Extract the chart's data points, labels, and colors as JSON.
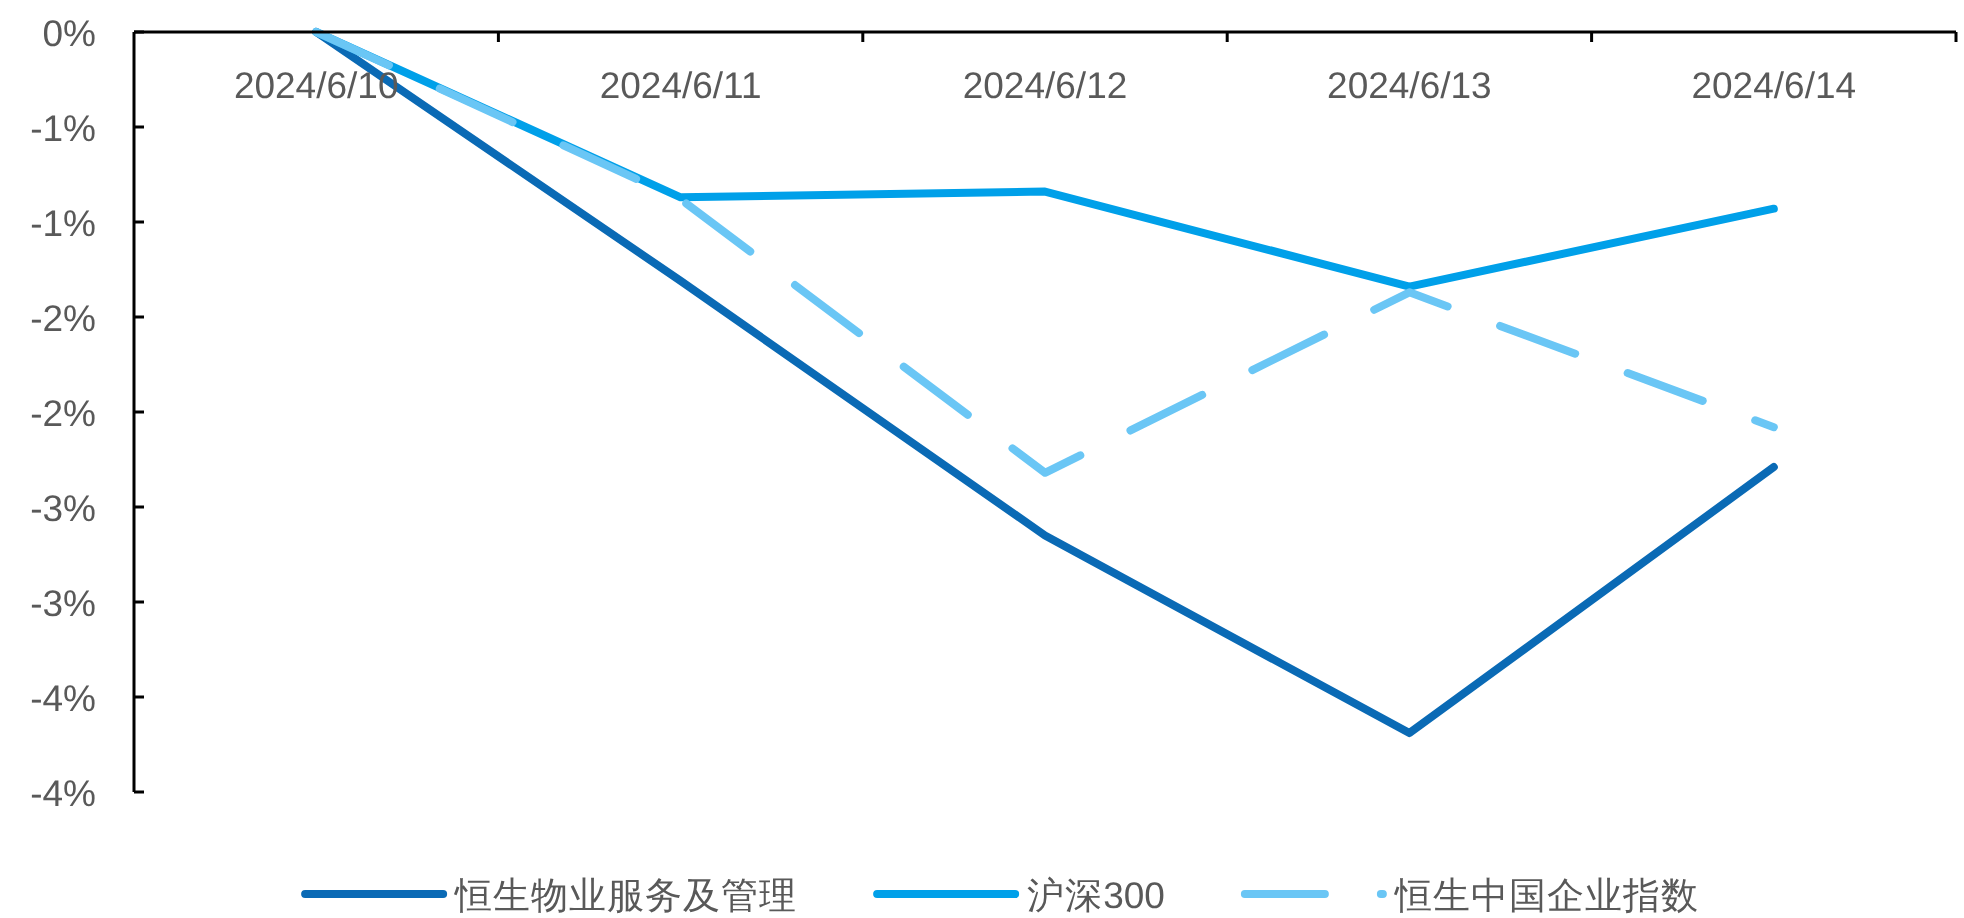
{
  "chart_data": {
    "type": "line",
    "categories": [
      "2024/6/10",
      "2024/6/11",
      "2024/6/12",
      "2024/6/13",
      "2024/6/14"
    ],
    "series": [
      {
        "name": "恒生物业服务及管理",
        "color": "#0a6ab5",
        "values": [
          0,
          -1.31,
          -2.65,
          -3.69,
          -2.29
        ]
      },
      {
        "name": "沪深300",
        "color": "#00a0e9",
        "values": [
          0,
          -0.87,
          -0.84,
          -1.34,
          -0.93
        ]
      },
      {
        "name": "恒生中国企业指数",
        "color": "#6ac6f5",
        "line_style": "dashed",
        "values": [
          0,
          -0.88,
          -2.32,
          -1.37,
          -2.08
        ]
      }
    ],
    "ylim": [
      -4,
      0
    ],
    "yticks": [
      {
        "value": 0,
        "label": "0%"
      },
      {
        "value": -0.5,
        "label": "-1%"
      },
      {
        "value": -1,
        "label": "-1%"
      },
      {
        "value": -1.5,
        "label": "-2%"
      },
      {
        "value": -2,
        "label": "-2%"
      },
      {
        "value": -2.5,
        "label": "-3%"
      },
      {
        "value": -3,
        "label": "-3%"
      },
      {
        "value": -3.5,
        "label": "-4%"
      },
      {
        "value": -4,
        "label": "-4%"
      }
    ],
    "legend": "bottom"
  }
}
